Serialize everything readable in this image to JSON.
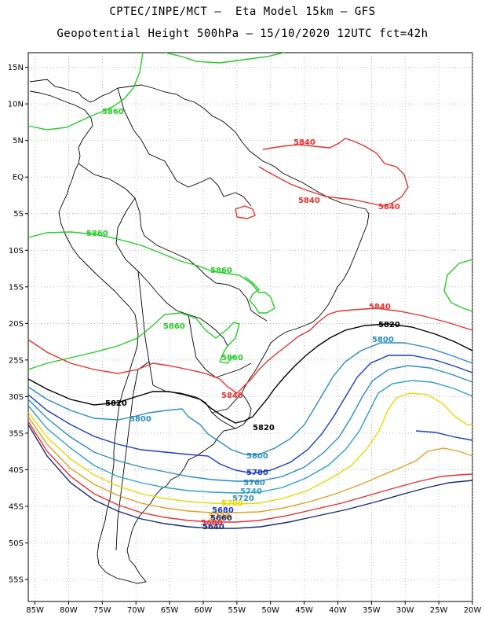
{
  "header": {
    "line1": "CPTEC/INPE/MCT –  Eta Model 15km – GFS",
    "line2": "Geopotential Height 500hPa – 15/10/2020 12UTC fct=42h"
  },
  "axes": {
    "lon_labels": [
      "85W",
      "80W",
      "75W",
      "70W",
      "65W",
      "60W",
      "55W",
      "50W",
      "45W",
      "40W",
      "35W",
      "30W",
      "25W",
      "20W"
    ],
    "lat_labels": [
      "15N",
      "10N",
      "5N",
      "EQ",
      "5S",
      "10S",
      "15S",
      "20S",
      "25S",
      "30S",
      "35S",
      "40S",
      "45S",
      "50S",
      "55S"
    ],
    "lon_range": [
      -86,
      -20
    ],
    "lat_range": [
      17,
      -58
    ],
    "grid": "dotted"
  },
  "contour_colors": {
    "5860": "#22cc22",
    "5840": "#e83030",
    "5820": "#000000",
    "5800": "#2a8cc0",
    "5780": "#1a3cc8",
    "5760": "#2a8cc0",
    "5740": "#2aa0c8",
    "5720": "#e8d800",
    "5700": "#e0a020",
    "5680": "#e83030",
    "5660": "#1a2a7a"
  },
  "contour_labels": {
    "g1": "5860",
    "g2": "5860",
    "g3": "5860",
    "g4": "5860",
    "g5": "5860",
    "r1": "5840",
    "r2": "5840",
    "r3": "5840",
    "r4": "5840",
    "k1": "5820",
    "k2": "5820",
    "k3": "5820",
    "b1": "5800",
    "b2": "5800",
    "b3": "5800",
    "c1": "5780",
    "c2": "5760",
    "c3": "5740",
    "c4": "5720",
    "c5": "5700",
    "c6": "5680",
    "c7": "5660",
    "c8": "5640"
  }
}
